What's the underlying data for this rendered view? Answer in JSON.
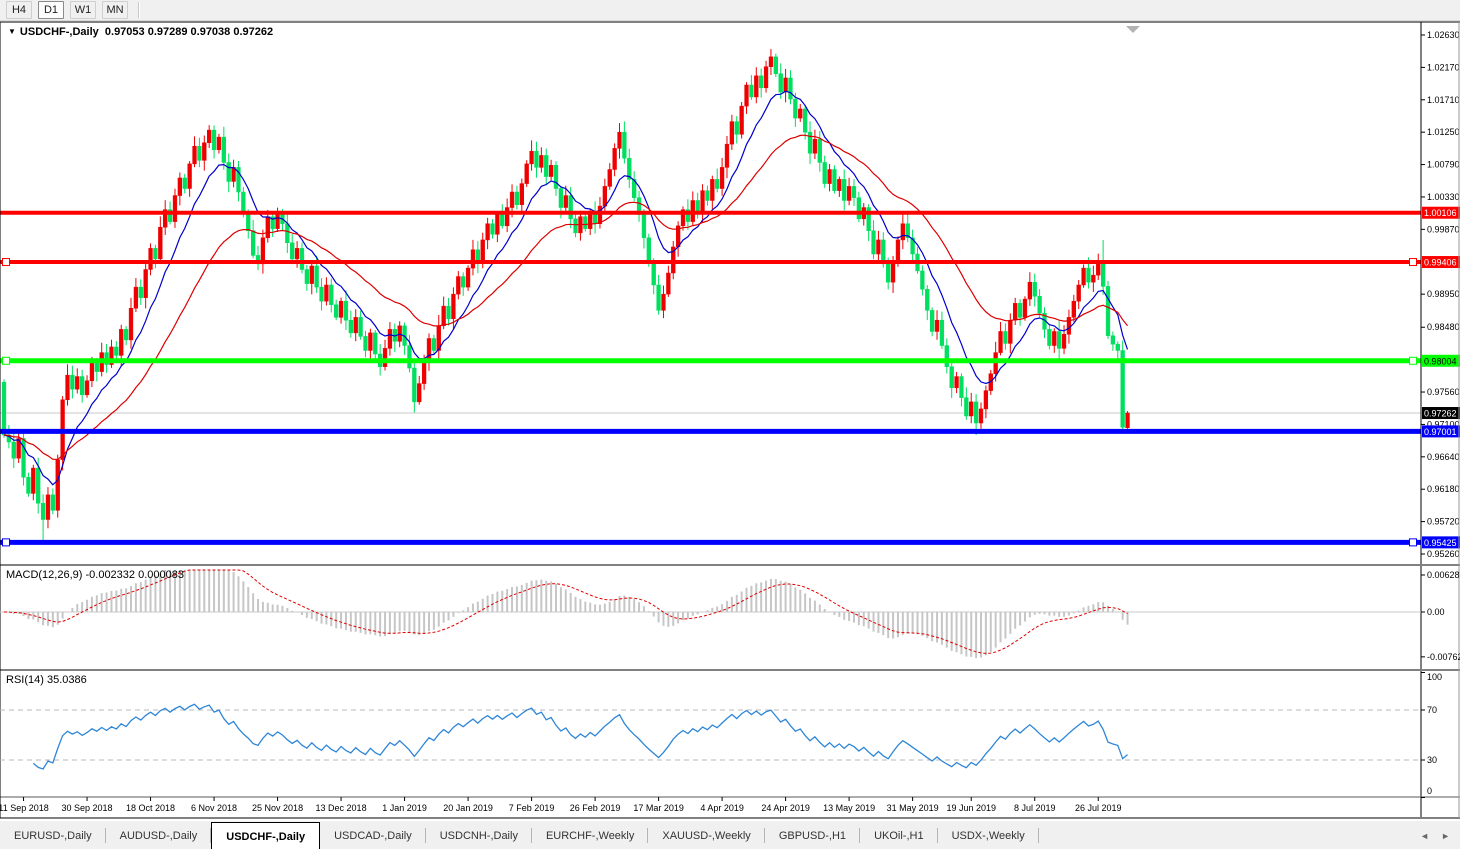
{
  "toolbar": {
    "timeframes": [
      "H4",
      "D1",
      "W1",
      "MN"
    ],
    "active": "D1"
  },
  "title": {
    "symbol": "USDCHF-,Daily",
    "ohlc_values": "0.97053 0.97289 0.97038 0.97262"
  },
  "icons": {
    "caret_down": "▼",
    "shift_marker": "▼",
    "tab_scroll_left": "◄",
    "tab_scroll_right": "►"
  },
  "macd_panel": {
    "label": "MACD(12,26,9)",
    "values": "-0.002332 0.000083",
    "axis_labels": [
      {
        "text": "0.006286",
        "value": 0.006286
      },
      {
        "text": "0.00",
        "value": 0
      },
      {
        "text": "-0.00762",
        "value": -0.00762
      }
    ]
  },
  "rsi_panel": {
    "label": "RSI(14)",
    "value": "35.0386",
    "axis_labels": [
      {
        "text": "100",
        "value": 100
      },
      {
        "text": "70",
        "value": 70
      },
      {
        "text": "30",
        "value": 30
      },
      {
        "text": "0",
        "value": 0
      }
    ],
    "levels": [
      30,
      70
    ]
  },
  "price_axis": {
    "labels": [
      {
        "text": "1.02630",
        "price": 1.0263
      },
      {
        "text": "1.02170",
        "price": 1.0217
      },
      {
        "text": "1.01710",
        "price": 1.0171
      },
      {
        "text": "1.01250",
        "price": 1.0125
      },
      {
        "text": "1.00790",
        "price": 1.0079
      },
      {
        "text": "1.00330",
        "price": 1.0033
      },
      {
        "text": "0.99870",
        "price": 0.9987
      },
      {
        "text": "0.98950",
        "price": 0.9895
      },
      {
        "text": "0.98480",
        "price": 0.9848
      },
      {
        "text": "0.97560",
        "price": 0.9756
      },
      {
        "text": "0.97100",
        "price": 0.971
      },
      {
        "text": "0.96640",
        "price": 0.9664
      },
      {
        "text": "0.96180",
        "price": 0.9618
      },
      {
        "text": "0.95720",
        "price": 0.9572
      },
      {
        "text": "0.95260",
        "price": 0.9526
      }
    ],
    "badges": [
      {
        "text": "1.00106",
        "price": 1.00106,
        "bg": "#ff0000",
        "fg": "#ffffff"
      },
      {
        "text": "0.99406",
        "price": 0.99406,
        "bg": "#ff0000",
        "fg": "#ffffff"
      },
      {
        "text": "0.98004",
        "price": 0.98004,
        "bg": "#00ff00",
        "fg": "#000000"
      },
      {
        "text": "0.97262",
        "price": 0.97262,
        "bg": "#000000",
        "fg": "#ffffff"
      },
      {
        "text": "0.97001",
        "price": 0.97001,
        "bg": "#0000ff",
        "fg": "#ffffff"
      },
      {
        "text": "0.95425",
        "price": 0.95425,
        "bg": "#0000ff",
        "fg": "#ffffff"
      }
    ]
  },
  "date_axis": {
    "labels": [
      {
        "text": "11 Sep 2018",
        "bar": 4
      },
      {
        "text": "30 Sep 2018",
        "bar": 17
      },
      {
        "text": "18 Oct 2018",
        "bar": 30
      },
      {
        "text": "6 Nov 2018",
        "bar": 43
      },
      {
        "text": "25 Nov 2018",
        "bar": 56
      },
      {
        "text": "13 Dec 2018",
        "bar": 69
      },
      {
        "text": "1 Jan 2019",
        "bar": 82
      },
      {
        "text": "20 Jan 2019",
        "bar": 95
      },
      {
        "text": "7 Feb 2019",
        "bar": 108
      },
      {
        "text": "26 Feb 2019",
        "bar": 121
      },
      {
        "text": "17 Mar 2019",
        "bar": 134
      },
      {
        "text": "4 Apr 2019",
        "bar": 147
      },
      {
        "text": "24 Apr 2019",
        "bar": 160
      },
      {
        "text": "13 May 2019",
        "bar": 173
      },
      {
        "text": "31 May 2019",
        "bar": 186
      },
      {
        "text": "19 Jun 2019",
        "bar": 198
      },
      {
        "text": "8 Jul 2019",
        "bar": 211
      },
      {
        "text": "26 Jul 2019",
        "bar": 224
      }
    ]
  },
  "tabs": {
    "active_index": 2,
    "items": [
      "EURUSD-,Daily",
      "AUDUSD-,Daily",
      "USDCHF-,Daily",
      "USDCAD-,Daily",
      "USDCNH-,Daily",
      "EURCHF-,Weekly",
      "XAUUSD-,Weekly",
      "GBPUSD-,H1",
      "UKOil-,H1",
      "USDX-,Weekly"
    ]
  },
  "colors": {
    "candle_up": "#ee0000",
    "candle_down": "#00df5f",
    "hline_red": "#ff0000",
    "hline_green": "#00ff00",
    "hline_blue": "#0000ff",
    "ma_fast": "#0000cc",
    "ma_slow": "#dd0000",
    "macd_hist": "#c6c6c6",
    "macd_signal": "#e00000",
    "rsi_line": "#2e86d8",
    "current_price_line": "#c8c8c8",
    "level_dash": "#b9b9b9",
    "shift_marker": "#b3b3b3"
  },
  "chart_data": {
    "type": "candlestick",
    "symbol": "USDCHF",
    "timeframe": "Daily",
    "title": "USDCHF-,Daily",
    "last_bar_ohlc": {
      "open": 0.97053,
      "high": 0.97289,
      "low": 0.97038,
      "close": 0.97262
    },
    "visible_price_range": [
      0.9526,
      1.0263
    ],
    "support_resistance_lines": [
      {
        "price": 1.00106,
        "color": "#ff0000",
        "w": 4,
        "handles": false
      },
      {
        "price": 0.99406,
        "color": "#ff0000",
        "w": 4,
        "handles": true
      },
      {
        "price": 0.98004,
        "color": "#00ff00",
        "w": 5,
        "handles": true
      },
      {
        "price": 0.97001,
        "color": "#0000ff",
        "w": 5,
        "handles": false
      },
      {
        "price": 0.95425,
        "color": "#0000ff",
        "w": 5,
        "handles": true
      }
    ],
    "current_price": 0.97262,
    "moving_averages": [
      {
        "period": 10,
        "role": "fast"
      },
      {
        "period": 30,
        "role": "slow"
      }
    ],
    "macd": {
      "fast": 12,
      "slow": 26,
      "signal": 9,
      "current_main": -0.002332,
      "current_signal": 8.3e-05,
      "axis_max": 0.006286,
      "axis_min": -0.00762
    },
    "rsi": {
      "period": 14,
      "current": 35.0386
    },
    "first_open": 0.977,
    "closes": [
      0.9695,
      0.9685,
      0.9662,
      0.969,
      0.9635,
      0.9612,
      0.9648,
      0.9598,
      0.9575,
      0.961,
      0.9588,
      0.966,
      0.9745,
      0.978,
      0.976,
      0.9778,
      0.9752,
      0.9772,
      0.98,
      0.9785,
      0.9812,
      0.9795,
      0.982,
      0.9808,
      0.9845,
      0.983,
      0.9875,
      0.9905,
      0.989,
      0.993,
      0.996,
      0.9945,
      0.999,
      1.0015,
      0.9998,
      1.0035,
      1.006,
      1.0045,
      1.008,
      1.0105,
      1.0085,
      1.011,
      1.0128,
      1.01,
      1.0118,
      1.0082,
      1.0055,
      1.0075,
      1.004,
      1.001,
      0.9985,
      0.995,
      0.9938,
      0.9975,
      1.0005,
      0.9988,
      1.0012,
      0.9995,
      0.9968,
      0.9945,
      0.996,
      0.993,
      0.991,
      0.9935,
      0.9905,
      0.9885,
      0.9908,
      0.988,
      0.9862,
      0.9885,
      0.9858,
      0.984,
      0.9862,
      0.9835,
      0.9815,
      0.984,
      0.981,
      0.9792,
      0.9818,
      0.9845,
      0.9828,
      0.985,
      0.9822,
      0.979,
      0.9742,
      0.9768,
      0.98,
      0.9832,
      0.9815,
      0.985,
      0.9878,
      0.986,
      0.9895,
      0.992,
      0.9905,
      0.9932,
      0.9958,
      0.994,
      0.9972,
      0.9995,
      0.998,
      1.0008,
      0.9992,
      1.0018,
      1.004,
      1.0022,
      1.0052,
      1.008,
      1.0098,
      1.0075,
      1.0092,
      1.0062,
      1.0078,
      1.0045,
      1.0018,
      1.0035,
      1.0002,
      0.9982,
      1.0005,
      0.9988,
      1.0012,
      0.9995,
      1.002,
      1.0048,
      1.0072,
      1.0102,
      1.0125,
      1.0088,
      1.0058,
      1.0032,
      1.0008,
      0.9975,
      0.9942,
      0.9908,
      0.9872,
      0.9895,
      0.9925,
      0.9962,
      0.9992,
      1.0015,
      0.9998,
      1.0028,
      1.0012,
      1.0042,
      1.0028,
      1.0058,
      1.0045,
      1.0075,
      1.0108,
      1.014,
      1.0122,
      1.0162,
      1.0192,
      1.0175,
      1.0205,
      1.0188,
      1.0218,
      1.0232,
      1.0208,
      1.0182,
      1.0202,
      1.0172,
      1.0145,
      1.0158,
      1.0125,
      1.0095,
      1.0115,
      1.0082,
      1.0052,
      1.0072,
      1.0042,
      1.0058,
      1.0028,
      1.0048,
      1.0032,
      1.0002,
      1.0018,
      0.9985,
      0.9952,
      0.9972,
      0.9938,
      0.9912,
      0.9942,
      0.9972,
      0.9995,
      0.9975,
      0.9952,
      0.9928,
      0.9902,
      0.9872,
      0.9842,
      0.9858,
      0.9822,
      0.9792,
      0.9762,
      0.9778,
      0.9748,
      0.9722,
      0.9742,
      0.9712,
      0.9732,
      0.9758,
      0.9782,
      0.9812,
      0.9842,
      0.9825,
      0.9858,
      0.9882,
      0.9862,
      0.9888,
      0.9912,
      0.9892,
      0.9868,
      0.9845,
      0.9822,
      0.9842,
      0.9818,
      0.9838,
      0.9862,
      0.9885,
      0.9908,
      0.9932,
      0.9912,
      0.9922,
      0.9941,
      0.9906,
      0.9836,
      0.9824,
      0.9815,
      0.9706,
      0.97262
    ],
    "wick_overrides": {
      "0": {
        "o": 0.977
      },
      "8": {
        "l": 0.9543
      },
      "42": {
        "h": 1.0135
      },
      "84": {
        "l": 0.9727
      },
      "126": {
        "h": 1.0138
      },
      "157": {
        "h": 1.0243
      },
      "199": {
        "l": 0.9695
      },
      "225": {
        "h": 0.9972
      },
      "229": {
        "l": 0.9699
      },
      "230": {
        "o": 0.97053,
        "h": 0.97289,
        "l": 0.97038
      }
    }
  }
}
